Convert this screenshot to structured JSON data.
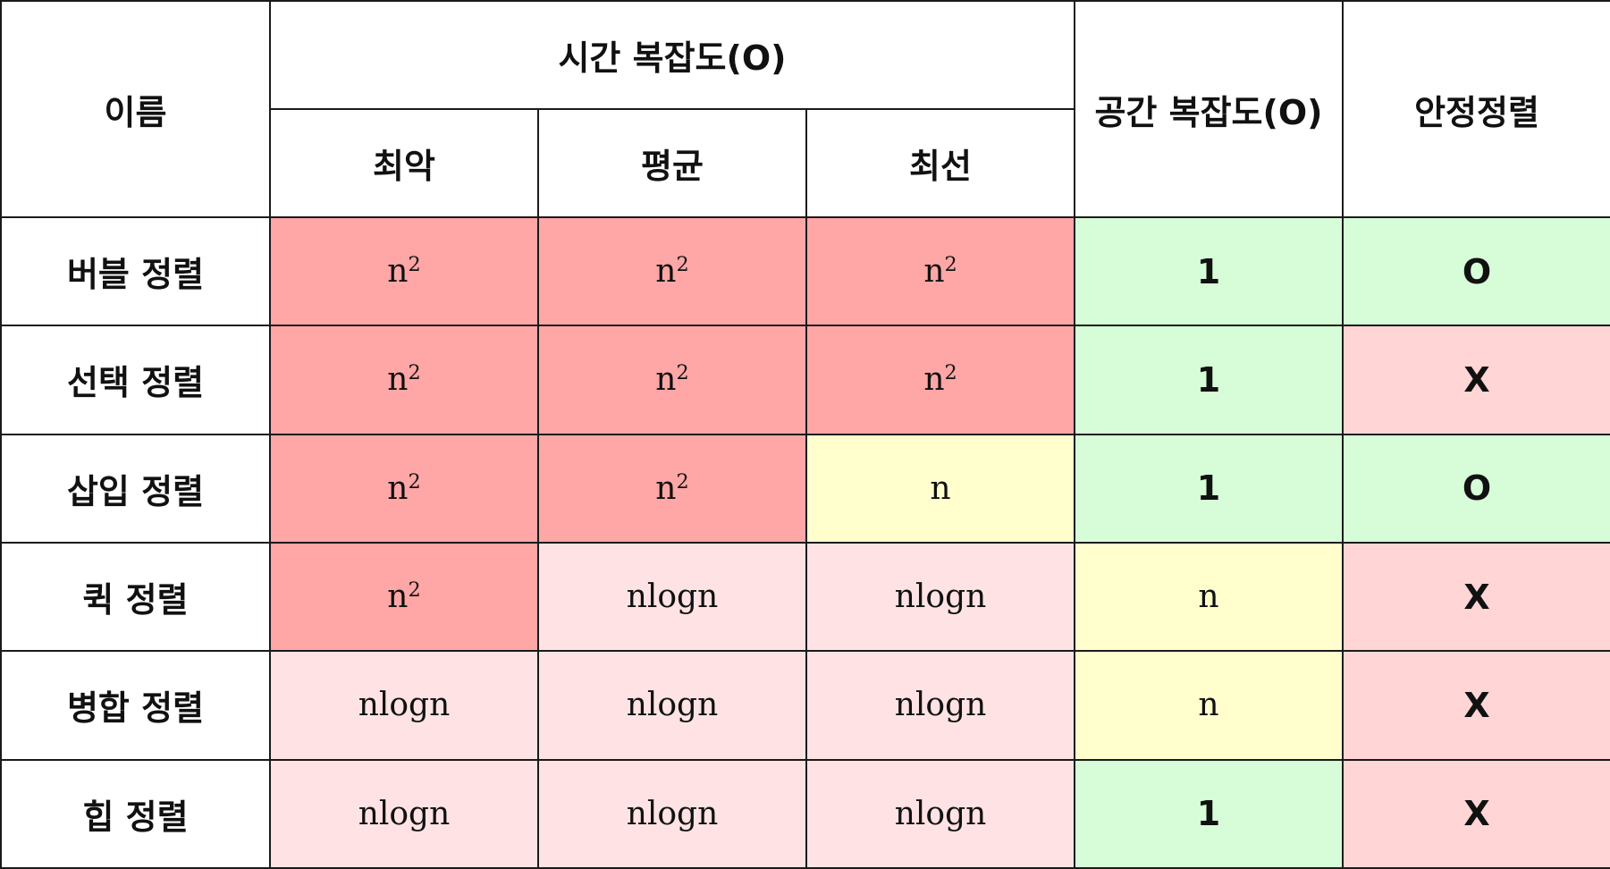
{
  "header": {
    "name": "이름",
    "time_complexity": "시간 복잡도(O)",
    "worst": "최악",
    "average": "평균",
    "best": "최선",
    "space_complexity": "공간 복잡도(O)",
    "stable": "안정정렬"
  },
  "colors": {
    "red": "#ffa6a6",
    "light_pink": "#ffe3e4",
    "yellow": "#fffecc",
    "green": "#d6fdd7",
    "rose": "#ffd5d6"
  },
  "rows": [
    {
      "name": "버블 정렬",
      "worst": {
        "base": "n",
        "exp": "2",
        "color": "red"
      },
      "average": {
        "base": "n",
        "exp": "2",
        "color": "red"
      },
      "best": {
        "base": "n",
        "exp": "2",
        "color": "red"
      },
      "space": {
        "value": "1",
        "color": "green"
      },
      "stable": {
        "value": "O",
        "color": "green"
      }
    },
    {
      "name": "선택 정렬",
      "worst": {
        "base": "n",
        "exp": "2",
        "color": "red"
      },
      "average": {
        "base": "n",
        "exp": "2",
        "color": "red"
      },
      "best": {
        "base": "n",
        "exp": "2",
        "color": "red"
      },
      "space": {
        "value": "1",
        "color": "green"
      },
      "stable": {
        "value": "X",
        "color": "rose"
      }
    },
    {
      "name": "삽입 정렬",
      "worst": {
        "base": "n",
        "exp": "2",
        "color": "red"
      },
      "average": {
        "base": "n",
        "exp": "2",
        "color": "red"
      },
      "best": {
        "base": "n",
        "exp": "",
        "color": "yellow"
      },
      "space": {
        "value": "1",
        "color": "green"
      },
      "stable": {
        "value": "O",
        "color": "green"
      }
    },
    {
      "name": "퀵 정렬",
      "worst": {
        "base": "n",
        "exp": "2",
        "color": "red"
      },
      "average": {
        "base": "nlogn",
        "exp": "",
        "color": "light_pink"
      },
      "best": {
        "base": "nlogn",
        "exp": "",
        "color": "light_pink"
      },
      "space": {
        "value": "n",
        "color": "yellow"
      },
      "stable": {
        "value": "X",
        "color": "rose"
      }
    },
    {
      "name": "병합 정렬",
      "worst": {
        "base": "nlogn",
        "exp": "",
        "color": "light_pink"
      },
      "average": {
        "base": "nlogn",
        "exp": "",
        "color": "light_pink"
      },
      "best": {
        "base": "nlogn",
        "exp": "",
        "color": "light_pink"
      },
      "space": {
        "value": "n",
        "color": "yellow"
      },
      "stable": {
        "value": "X",
        "color": "rose"
      }
    },
    {
      "name": "힙 정렬",
      "worst": {
        "base": "nlogn",
        "exp": "",
        "color": "light_pink"
      },
      "average": {
        "base": "nlogn",
        "exp": "",
        "color": "light_pink"
      },
      "best": {
        "base": "nlogn",
        "exp": "",
        "color": "light_pink"
      },
      "space": {
        "value": "1",
        "color": "green"
      },
      "stable": {
        "value": "X",
        "color": "rose"
      }
    }
  ]
}
